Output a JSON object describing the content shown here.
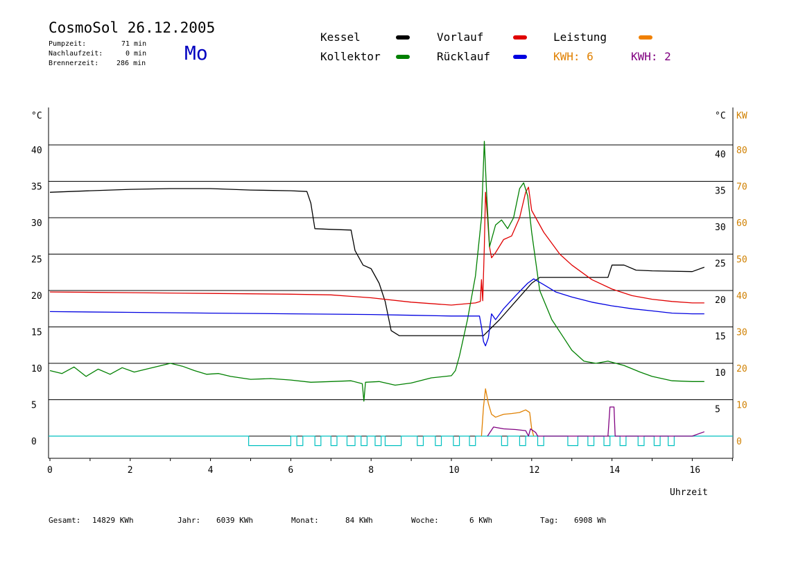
{
  "header": {
    "title": "CosmoSol 26.12.2005",
    "weekday": "Mo",
    "stats": [
      {
        "label": "Pumpzeit:",
        "value": "71 min"
      },
      {
        "label": "Nachlaufzeit:",
        "value": "0 min"
      },
      {
        "label": "Brennerzeit:",
        "value": "286 min"
      }
    ]
  },
  "legend": {
    "items": [
      {
        "label": "Kessel",
        "color": "#000000"
      },
      {
        "label": "Vorlauf",
        "color": "#e00000"
      },
      {
        "label": "Leistung",
        "color": "#f08000"
      },
      {
        "label": "Kollektor",
        "color": "#008000"
      },
      {
        "label": "Rücklauf",
        "color": "#0000e0"
      }
    ],
    "kwh": [
      {
        "text": "KWH: 6",
        "color": "#e08000"
      },
      {
        "text": "KWH: 2",
        "color": "#800080"
      }
    ]
  },
  "footer": {
    "gesamt_label": "Gesamt:",
    "gesamt_value": "14829 KWh",
    "jahr_label": "Jahr:",
    "jahr_value": "6039 KWh",
    "monat_label": "Monat:",
    "monat_value": "84 KWh",
    "woche_label": "Woche:",
    "woche_value": "6 KWh",
    "tag_label": "Tag:",
    "tag_value": "6908 Wh"
  },
  "chart_data": {
    "type": "line",
    "xlabel": "Uhrzeit",
    "ylabel_left": "°C",
    "ylabel_right_temp": "°C",
    "ylabel_right_power": "KW",
    "xlim": [
      0,
      17
    ],
    "ylim": [
      -3,
      45
    ],
    "x_ticks": [
      0,
      2,
      4,
      6,
      8,
      10,
      12,
      14,
      16
    ],
    "y_ticks_left": [
      0,
      5,
      10,
      15,
      20,
      25,
      30,
      35,
      40
    ],
    "y_ticks_right_temp": [
      5,
      10,
      15,
      20,
      25,
      30,
      35,
      40
    ],
    "y_ticks_right_power": [
      0,
      10,
      20,
      30,
      40,
      50,
      60,
      70,
      80
    ],
    "gridlines_y": [
      0,
      5,
      10,
      15,
      20,
      25,
      30,
      35,
      40
    ],
    "series": [
      {
        "name": "Kessel",
        "color": "#000000",
        "points": [
          [
            0,
            33.5
          ],
          [
            1,
            33.7
          ],
          [
            2,
            33.9
          ],
          [
            3,
            34
          ],
          [
            4,
            34
          ],
          [
            5,
            33.8
          ],
          [
            6,
            33.7
          ],
          [
            6.4,
            33.6
          ],
          [
            6.5,
            32
          ],
          [
            6.6,
            28.5
          ],
          [
            7.0,
            28.4
          ],
          [
            7.5,
            28.3
          ],
          [
            7.6,
            25.5
          ],
          [
            7.8,
            23.5
          ],
          [
            8.0,
            23
          ],
          [
            8.2,
            21
          ],
          [
            8.35,
            18.5
          ],
          [
            8.5,
            14.5
          ],
          [
            8.7,
            13.8
          ],
          [
            9,
            13.8
          ],
          [
            10,
            13.8
          ],
          [
            10.8,
            13.8
          ],
          [
            11.2,
            16
          ],
          [
            11.6,
            18.5
          ],
          [
            12,
            21
          ],
          [
            12.2,
            21.8
          ],
          [
            13,
            21.8
          ],
          [
            13.6,
            21.8
          ],
          [
            13.9,
            21.8
          ],
          [
            14.0,
            23.5
          ],
          [
            14.3,
            23.5
          ],
          [
            14.6,
            22.8
          ],
          [
            15,
            22.7
          ],
          [
            16,
            22.6
          ],
          [
            16.3,
            23.2
          ]
        ]
      },
      {
        "name": "Vorlauf",
        "color": "#e00000",
        "points": [
          [
            0,
            19.8
          ],
          [
            2,
            19.7
          ],
          [
            4,
            19.6
          ],
          [
            6,
            19.5
          ],
          [
            7,
            19.4
          ],
          [
            8,
            19
          ],
          [
            9,
            18.4
          ],
          [
            10,
            18.0
          ],
          [
            10.6,
            18.3
          ],
          [
            10.72,
            18.5
          ],
          [
            10.75,
            21.5
          ],
          [
            10.78,
            18.6
          ],
          [
            10.82,
            26
          ],
          [
            10.85,
            33.5
          ],
          [
            10.9,
            30
          ],
          [
            10.95,
            26
          ],
          [
            11.0,
            24.5
          ],
          [
            11.1,
            25.2
          ],
          [
            11.3,
            27
          ],
          [
            11.5,
            27.5
          ],
          [
            11.7,
            30
          ],
          [
            11.85,
            33.5
          ],
          [
            11.92,
            34.2
          ],
          [
            12.0,
            31
          ],
          [
            12.3,
            28
          ],
          [
            12.7,
            25
          ],
          [
            13,
            23.5
          ],
          [
            13.5,
            21.5
          ],
          [
            14,
            20.2
          ],
          [
            14.5,
            19.3
          ],
          [
            15,
            18.8
          ],
          [
            15.5,
            18.5
          ],
          [
            16,
            18.3
          ],
          [
            16.3,
            18.3
          ]
        ]
      },
      {
        "name": "Kollektor",
        "color": "#008000",
        "points": [
          [
            0,
            9
          ],
          [
            0.3,
            8.6
          ],
          [
            0.6,
            9.5
          ],
          [
            0.9,
            8.2
          ],
          [
            1.2,
            9.2
          ],
          [
            1.5,
            8.5
          ],
          [
            1.8,
            9.4
          ],
          [
            2.1,
            8.8
          ],
          [
            2.4,
            9.2
          ],
          [
            2.7,
            9.6
          ],
          [
            3.0,
            10.0
          ],
          [
            3.3,
            9.6
          ],
          [
            3.6,
            9.0
          ],
          [
            3.9,
            8.5
          ],
          [
            4.2,
            8.6
          ],
          [
            4.5,
            8.2
          ],
          [
            5.0,
            7.8
          ],
          [
            5.5,
            7.9
          ],
          [
            6.0,
            7.7
          ],
          [
            6.5,
            7.4
          ],
          [
            7.0,
            7.5
          ],
          [
            7.5,
            7.6
          ],
          [
            7.78,
            7.2
          ],
          [
            7.82,
            4.8
          ],
          [
            7.86,
            7.4
          ],
          [
            8.2,
            7.5
          ],
          [
            8.6,
            7.0
          ],
          [
            9.0,
            7.3
          ],
          [
            9.5,
            8.0
          ],
          [
            10.0,
            8.3
          ],
          [
            10.1,
            9.0
          ],
          [
            10.2,
            11
          ],
          [
            10.4,
            16
          ],
          [
            10.6,
            22
          ],
          [
            10.75,
            30
          ],
          [
            10.82,
            40.5
          ],
          [
            10.88,
            33
          ],
          [
            10.95,
            26
          ],
          [
            11.1,
            29
          ],
          [
            11.25,
            29.7
          ],
          [
            11.4,
            28.5
          ],
          [
            11.55,
            30
          ],
          [
            11.7,
            34
          ],
          [
            11.8,
            34.8
          ],
          [
            11.9,
            33
          ],
          [
            12.0,
            28
          ],
          [
            12.2,
            20
          ],
          [
            12.5,
            16
          ],
          [
            12.8,
            13.5
          ],
          [
            13,
            11.8
          ],
          [
            13.3,
            10.3
          ],
          [
            13.6,
            10.0
          ],
          [
            13.9,
            10.3
          ],
          [
            14.3,
            9.7
          ],
          [
            14.7,
            8.8
          ],
          [
            15,
            8.2
          ],
          [
            15.5,
            7.6
          ],
          [
            16,
            7.5
          ],
          [
            16.3,
            7.5
          ]
        ]
      },
      {
        "name": "Rücklauf",
        "color": "#0000e0",
        "points": [
          [
            0,
            17.1
          ],
          [
            2,
            17.0
          ],
          [
            4,
            16.9
          ],
          [
            6,
            16.8
          ],
          [
            8,
            16.7
          ],
          [
            9,
            16.6
          ],
          [
            10,
            16.5
          ],
          [
            10.7,
            16.5
          ],
          [
            10.75,
            15
          ],
          [
            10.8,
            13.0
          ],
          [
            10.85,
            12.4
          ],
          [
            10.92,
            13.5
          ],
          [
            11.0,
            16.8
          ],
          [
            11.1,
            16.0
          ],
          [
            11.3,
            17.5
          ],
          [
            11.6,
            19.3
          ],
          [
            11.9,
            21.0
          ],
          [
            12.05,
            21.6
          ],
          [
            12.3,
            20.8
          ],
          [
            12.6,
            19.8
          ],
          [
            13,
            19.1
          ],
          [
            13.5,
            18.4
          ],
          [
            14,
            17.9
          ],
          [
            14.5,
            17.5
          ],
          [
            15,
            17.2
          ],
          [
            15.5,
            16.9
          ],
          [
            16,
            16.8
          ],
          [
            16.3,
            16.8
          ]
        ]
      },
      {
        "name": "Leistung",
        "color": "#e08000",
        "axis": "power",
        "points": [
          [
            10.75,
            0
          ],
          [
            10.8,
            8
          ],
          [
            10.85,
            13
          ],
          [
            10.92,
            9
          ],
          [
            11.0,
            6
          ],
          [
            11.1,
            5.2
          ],
          [
            11.3,
            6.0
          ],
          [
            11.5,
            6.2
          ],
          [
            11.7,
            6.5
          ],
          [
            11.85,
            7.2
          ],
          [
            11.95,
            6.5
          ],
          [
            12.0,
            2
          ],
          [
            12.05,
            0
          ]
        ]
      },
      {
        "name": "Leistung2",
        "color": "#800080",
        "axis": "power",
        "points": [
          [
            10.9,
            0
          ],
          [
            11.05,
            2.5
          ],
          [
            11.3,
            2.0
          ],
          [
            11.6,
            1.8
          ],
          [
            11.85,
            1.5
          ],
          [
            11.92,
            0
          ],
          [
            11.97,
            2
          ],
          [
            12.1,
            1
          ],
          [
            12.15,
            0
          ],
          [
            13.9,
            0
          ],
          [
            13.95,
            8
          ],
          [
            14.05,
            8
          ],
          [
            14.08,
            0
          ],
          [
            16.0,
            0
          ],
          [
            16.3,
            1.2
          ]
        ]
      }
    ],
    "pump_indicator": {
      "color": "#00c0c0",
      "baseline": 0,
      "low": -1.3,
      "pulses": [
        [
          4.95,
          6.0
        ],
        [
          6.15,
          6.3
        ],
        [
          6.6,
          6.75
        ],
        [
          7.0,
          7.15
        ],
        [
          7.4,
          7.6
        ],
        [
          7.75,
          7.9
        ],
        [
          8.1,
          8.25
        ],
        [
          8.35,
          8.75
        ],
        [
          9.15,
          9.3
        ],
        [
          9.6,
          9.75
        ],
        [
          10.05,
          10.2
        ],
        [
          10.45,
          10.6
        ],
        [
          11.25,
          11.4
        ],
        [
          11.7,
          11.85
        ],
        [
          12.15,
          12.3
        ],
        [
          12.9,
          13.15
        ],
        [
          13.4,
          13.55
        ],
        [
          13.8,
          13.95
        ],
        [
          14.2,
          14.35
        ],
        [
          14.65,
          14.8
        ],
        [
          15.05,
          15.2
        ],
        [
          15.4,
          15.55
        ]
      ]
    }
  }
}
